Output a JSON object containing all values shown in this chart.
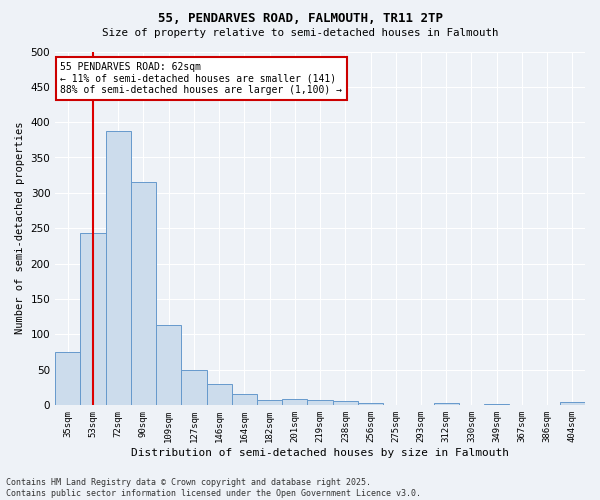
{
  "title1": "55, PENDARVES ROAD, FALMOUTH, TR11 2TP",
  "title2": "Size of property relative to semi-detached houses in Falmouth",
  "xlabel": "Distribution of semi-detached houses by size in Falmouth",
  "ylabel": "Number of semi-detached properties",
  "bar_color": "#ccdcec",
  "bar_edge_color": "#6699cc",
  "categories": [
    "35sqm",
    "53sqm",
    "72sqm",
    "90sqm",
    "109sqm",
    "127sqm",
    "146sqm",
    "164sqm",
    "182sqm",
    "201sqm",
    "219sqm",
    "238sqm",
    "256sqm",
    "275sqm",
    "293sqm",
    "312sqm",
    "330sqm",
    "349sqm",
    "367sqm",
    "386sqm",
    "404sqm"
  ],
  "values": [
    75,
    243,
    388,
    315,
    113,
    50,
    30,
    15,
    7,
    8,
    7,
    5,
    3,
    0,
    0,
    2,
    0,
    1,
    0,
    0,
    4
  ],
  "ylim": [
    0,
    500
  ],
  "yticks": [
    0,
    50,
    100,
    150,
    200,
    250,
    300,
    350,
    400,
    450,
    500
  ],
  "vline_color": "#dd0000",
  "vline_x": 1.0,
  "annotation_title": "55 PENDARVES ROAD: 62sqm",
  "annotation_line1": "← 11% of semi-detached houses are smaller (141)",
  "annotation_line2": "88% of semi-detached houses are larger (1,100) →",
  "annotation_box_color": "#cc0000",
  "footnote1": "Contains HM Land Registry data © Crown copyright and database right 2025.",
  "footnote2": "Contains public sector information licensed under the Open Government Licence v3.0.",
  "background_color": "#eef2f7",
  "plot_bg_color": "#eef2f7",
  "grid_color": "#ffffff"
}
